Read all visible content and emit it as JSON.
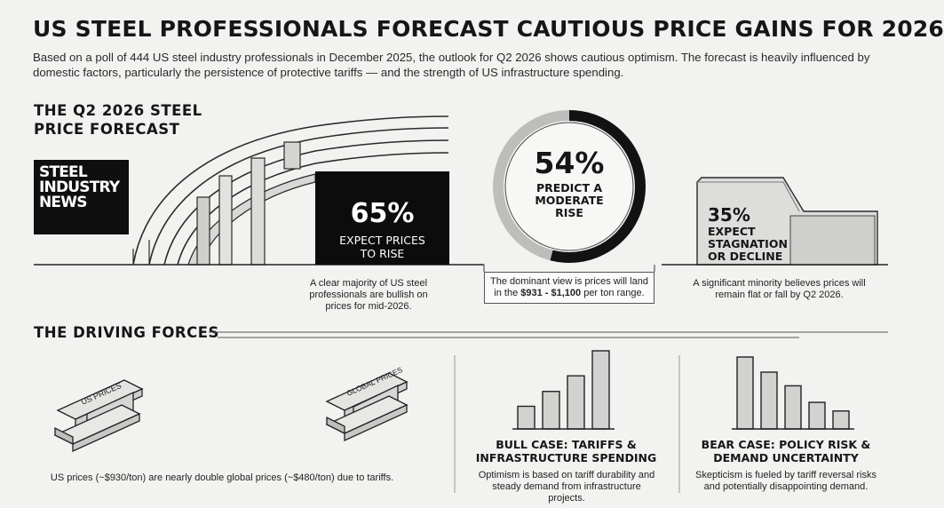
{
  "headline": "US STEEL PROFESSIONALS FORECAST CAUTIOUS PRICE GAINS FOR 2026",
  "intro": "Based on a poll of 444 US steel industry professionals in December 2025, the outlook for Q2 2026 shows cautious optimism. The forecast is heavily influenced by domestic factors, particularly the persistence of protective tariffs — and the strength of US infrastructure spending.",
  "forecast": {
    "heading": "THE Q2 2026 STEEL\nPRICE FORECAST",
    "logo_text": "STEEL\nINDUSTRY\nNEWS",
    "stats": [
      {
        "value": "65%",
        "label": "EXPECT PRICES\nTO RISE",
        "caption": "A clear majority of US steel professionals are bullish on prices for mid-2026."
      },
      {
        "value": "54%",
        "label": "PREDICT A\nMODERATE\nRISE",
        "caption_pre": "The dominant view is prices will land in the ",
        "caption_bold": "$931 - $1,100",
        "caption_post": " per ton range.",
        "ring_fraction": 0.54
      },
      {
        "value": "35%",
        "label": "EXPECT\nSTAGNATION\nOR DECLINE",
        "caption": "A significant minority believes prices will remain flat or fall by Q2 2026."
      }
    ]
  },
  "driving": {
    "heading": "THE DRIVING FORCES",
    "beam_labels": [
      "US PRICES",
      "GLOBAL PRICES"
    ],
    "tariff_caption": "US prices (~$930/ton) are nearly double global prices (~$480/ton) due to tariffs.",
    "bull": {
      "title": "BULL CASE: TARIFFS &\nINFRASTRUCTURE SPENDING",
      "caption": "Optimism is based on tariff durability and steady demand from infrastructure projects.",
      "bars": [
        0.29,
        0.48,
        0.68,
        1.0
      ]
    },
    "bear": {
      "title": "BEAR CASE: POLICY RISK &\nDEMAND UNCERTAINTY",
      "caption": "Skepticism is fueled by tariff reversal risks and potentially disappointing demand.",
      "bars": [
        1.0,
        0.79,
        0.6,
        0.37,
        0.25
      ]
    }
  }
}
